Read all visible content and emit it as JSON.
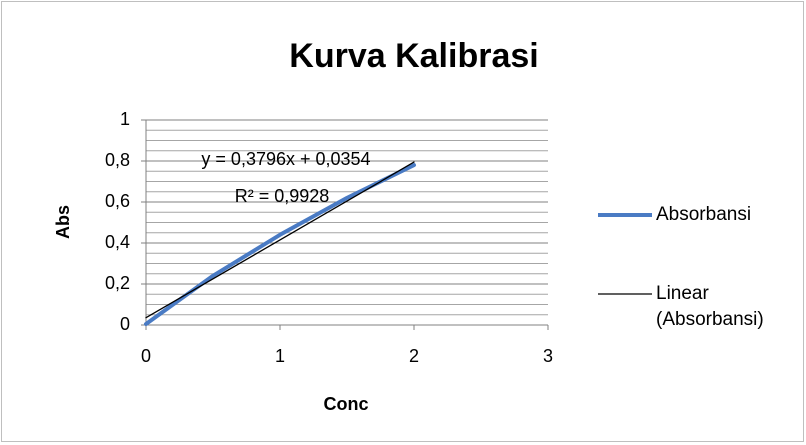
{
  "chart_data": {
    "type": "line",
    "title": "Kurva Kalibrasi",
    "x_label": "Conc",
    "y_label": "Abs",
    "series": [
      {
        "name": "Absorbansi",
        "color": "#4a7bc4",
        "x": [
          0,
          0.5,
          1,
          1.5,
          2
        ],
        "values": [
          0.005,
          0.24,
          0.44,
          0.62,
          0.78
        ]
      },
      {
        "name": "Linear (Absorbansi)",
        "color": "#000000",
        "x": [
          0,
          2
        ],
        "values": [
          0.0354,
          0.7946
        ]
      }
    ],
    "annotations": [
      "y = 0,3796x + 0,0354",
      "R² = 0,9928"
    ],
    "xlim": [
      0,
      3
    ],
    "xticks": [
      0,
      1,
      2,
      3
    ],
    "ylim": [
      0,
      1
    ],
    "yticks": [
      0,
      {
        "value": 0.2,
        "label": "0,2"
      },
      {
        "value": 0.4,
        "label": "0,4"
      },
      {
        "value": 0.6,
        "label": "0,6"
      },
      {
        "value": 0.8,
        "label": "0,8"
      },
      1
    ],
    "grid": true,
    "legend": "right"
  }
}
